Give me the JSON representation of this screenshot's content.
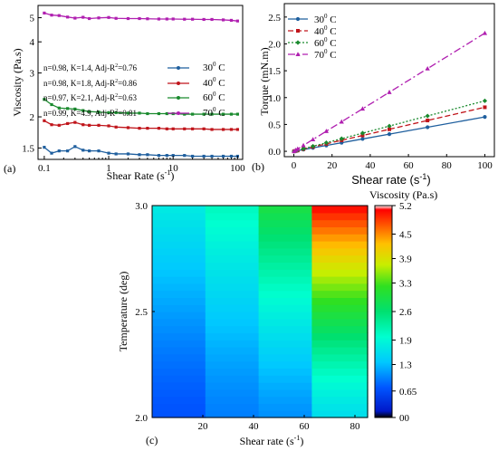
{
  "chart_data": [
    {
      "panel": "(a)",
      "type": "line",
      "xlabel": "Shear Rate (s",
      "xlabel_sup": "-1",
      "xlabel_end": ")",
      "ylabel": "Viscosity (Pa.s)",
      "xscale": "log",
      "yscale": "log",
      "xlim": [
        0.08,
        120
      ],
      "ylim": [
        1.35,
        5.6
      ],
      "xticks": [
        {
          "v": 0.1,
          "label": "0.1"
        },
        {
          "v": 1,
          "label": "1"
        },
        {
          "v": 10,
          "label": "10"
        },
        {
          "v": 100,
          "label": "100"
        }
      ],
      "yticks": [
        {
          "v": 1.5,
          "label": "1.5"
        },
        {
          "v": 2,
          "label": "2"
        },
        {
          "v": 3,
          "label": "3"
        },
        {
          "v": 4,
          "label": "4"
        },
        {
          "v": 5,
          "label": "5"
        }
      ],
      "legend_position": "center-right",
      "x": [
        0.1,
        0.13,
        0.17,
        0.23,
        0.3,
        0.4,
        0.5,
        0.7,
        1,
        1.3,
        2,
        3,
        4,
        6,
        8,
        10,
        15,
        20,
        30,
        40,
        60,
        80,
        100
      ],
      "series": [
        {
          "name": "30",
          "sup": "0",
          "unit": " C",
          "fit": "n=0.98, K=1.4, Adj-R",
          "fit_sup": "2",
          "fit_end": "=0.76",
          "color": "#1f5f9e",
          "values": [
            1.51,
            1.43,
            1.46,
            1.46,
            1.52,
            1.47,
            1.46,
            1.46,
            1.43,
            1.42,
            1.42,
            1.41,
            1.41,
            1.4,
            1.4,
            1.4,
            1.4,
            1.39,
            1.39,
            1.39,
            1.39,
            1.39,
            1.39
          ]
        },
        {
          "name": "40",
          "sup": "0",
          "unit": " C",
          "fit": "n=0.98, K=1.8, Adj-R",
          "fit_sup": "2",
          "fit_end": "=0.86",
          "color": "#c0151b",
          "values": [
            1.93,
            1.86,
            1.85,
            1.88,
            1.9,
            1.86,
            1.85,
            1.85,
            1.84,
            1.82,
            1.81,
            1.8,
            1.8,
            1.8,
            1.79,
            1.79,
            1.79,
            1.79,
            1.79,
            1.78,
            1.78,
            1.78,
            1.78
          ]
        },
        {
          "name": "60",
          "sup": "0",
          "unit": " C",
          "fit": "n=0.97, K=2.1, Adj-R",
          "fit_sup": "2",
          "fit_end": "=0.63",
          "color": "#1a8a2e",
          "values": [
            2.35,
            2.24,
            2.17,
            2.16,
            2.15,
            2.12,
            2.1,
            2.09,
            2.08,
            2.08,
            2.07,
            2.07,
            2.06,
            2.06,
            2.06,
            2.06,
            2.05,
            2.05,
            2.05,
            2.05,
            2.05,
            2.05,
            2.05
          ]
        },
        {
          "name": "70",
          "sup": "0",
          "unit": " C",
          "fit": "n=0.99, K=4.9, Adj-R",
          "fit_sup": "2",
          "fit_end": "=0.81",
          "color": "#b01fb0",
          "values": [
            5.22,
            5.12,
            5.1,
            5.03,
            4.98,
            5.02,
            4.96,
            4.99,
            5.01,
            4.97,
            4.96,
            4.96,
            4.95,
            4.94,
            4.94,
            4.94,
            4.93,
            4.93,
            4.92,
            4.92,
            4.9,
            4.88,
            4.85
          ]
        }
      ]
    },
    {
      "panel": "(b)",
      "type": "line",
      "xlabel": "Shear rate (s",
      "xlabel_sup": "-1",
      "xlabel_end": ")",
      "ylabel": "Torque (mN.m)",
      "xlim": [
        -5,
        105
      ],
      "ylim": [
        -0.1,
        2.75
      ],
      "xticks": [
        0,
        20,
        40,
        60,
        80,
        100
      ],
      "yticks": [
        0.0,
        0.5,
        1.0,
        1.5,
        2.0,
        2.5
      ],
      "ytick_labels": [
        "0.0",
        "0.5",
        "1.0",
        "1.5",
        "2.0",
        "2.5"
      ],
      "legend_position": "top-left",
      "x": [
        0.1,
        1,
        2,
        5,
        10,
        17,
        25,
        36,
        50,
        70,
        100
      ],
      "series": [
        {
          "name": "30",
          "sup": "0",
          "unit": " C",
          "color": "#1f5f9e",
          "marker": "circle",
          "dash": "",
          "values": [
            0.0,
            0.006,
            0.013,
            0.032,
            0.064,
            0.109,
            0.16,
            0.23,
            0.32,
            0.448,
            0.64
          ]
        },
        {
          "name": "40",
          "sup": "0",
          "unit": " C",
          "color": "#c0151b",
          "marker": "square",
          "dash": "6,3",
          "values": [
            0.0,
            0.008,
            0.016,
            0.041,
            0.082,
            0.139,
            0.205,
            0.295,
            0.41,
            0.574,
            0.82
          ]
        },
        {
          "name": "60",
          "sup": "0",
          "unit": " C",
          "color": "#1a8a2e",
          "marker": "diamond",
          "dash": "2,2",
          "values": [
            0.0,
            0.009,
            0.019,
            0.047,
            0.094,
            0.16,
            0.235,
            0.338,
            0.47,
            0.658,
            0.94
          ]
        },
        {
          "name": "70",
          "sup": "0",
          "unit": " C",
          "color": "#b01fb0",
          "marker": "triangle",
          "dash": "8,3,2,3",
          "values": [
            0.0,
            0.022,
            0.044,
            0.11,
            0.22,
            0.374,
            0.55,
            0.792,
            1.1,
            1.54,
            2.2
          ]
        }
      ]
    },
    {
      "panel": "(c)",
      "type": "heatmap",
      "title": "Viscosity  (Pa.s)",
      "xlabel": "Shear rate (s",
      "xlabel_sup": "-1",
      "xlabel_end": ")",
      "ylabel": "Temperature (deg)",
      "xlim": [
        0,
        85
      ],
      "ylim": [
        2.0,
        3.0
      ],
      "xticks": [
        20,
        40,
        60,
        80
      ],
      "yticks": [
        {
          "v": 2.0,
          "label": "2.0"
        },
        {
          "v": 2.5,
          "label": "2.5"
        },
        {
          "v": 3.0,
          "label": "3.0"
        }
      ],
      "column_edges": [
        0,
        21,
        42,
        63,
        85
      ],
      "column_values_bottom": [
        0.7,
        0.95,
        1.05,
        1.6
      ],
      "column_values_top": [
        1.75,
        2.1,
        2.95,
        5.1
      ],
      "colorbar": {
        "min": 0,
        "max": 5.2,
        "ticks": [
          {
            "v": 5.2,
            "label": "5.2"
          },
          {
            "v": 4.5,
            "label": "4.5"
          },
          {
            "v": 3.9,
            "label": "3.9"
          },
          {
            "v": 3.3,
            "label": "3.3"
          },
          {
            "v": 2.6,
            "label": "2.6"
          },
          {
            "v": 1.9,
            "label": "1.9"
          },
          {
            "v": 1.3,
            "label": "1.3"
          },
          {
            "v": 0.65,
            "label": "0.65"
          },
          {
            "v": 0,
            "label": "00"
          }
        ]
      }
    }
  ]
}
